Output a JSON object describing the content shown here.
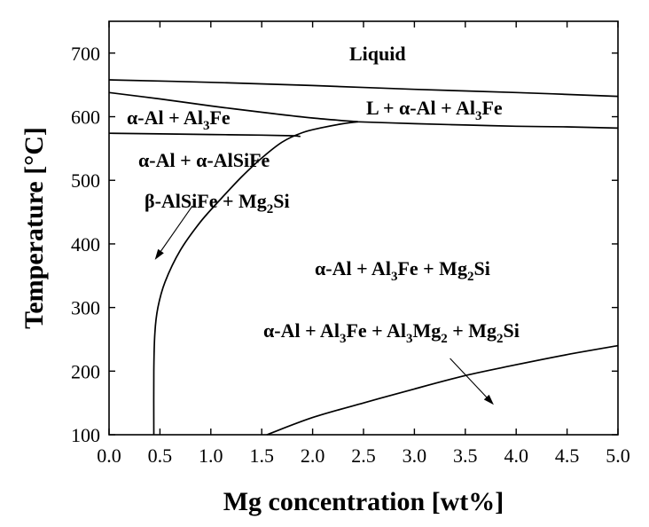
{
  "chart_data": {
    "type": "line",
    "title": "",
    "xlabel": "Mg concentration [wt%]",
    "ylabel": "Temperature [°C]",
    "xlim": [
      0.0,
      5.0
    ],
    "ylim": [
      100,
      750
    ],
    "xticks": [
      0.0,
      0.5,
      1.0,
      1.5,
      2.0,
      2.5,
      3.0,
      3.5,
      4.0,
      4.5,
      5.0
    ],
    "xtick_labels": [
      "0.0",
      "0.5",
      "1.0",
      "1.5",
      "2.0",
      "2.5",
      "3.0",
      "3.5",
      "4.0",
      "4.5",
      "5.0"
    ],
    "yticks": [
      100,
      200,
      300,
      400,
      500,
      600,
      700
    ],
    "ytick_labels": [
      "100",
      "200",
      "300",
      "400",
      "500",
      "600",
      "700"
    ],
    "grid": false,
    "series": [
      {
        "id": "liquidus",
        "x": [
          0.0,
          1.0,
          2.0,
          3.0,
          4.0,
          5.0
        ],
        "y": [
          658,
          654,
          649,
          643,
          638,
          632
        ]
      },
      {
        "id": "al-al3fe-upper",
        "x": [
          0.0,
          0.5,
          1.0,
          1.5,
          2.0,
          2.45
        ],
        "y": [
          638,
          628,
          617,
          607,
          598,
          592
        ]
      },
      {
        "id": "eutectic-line",
        "x": [
          2.45,
          3.0,
          3.5,
          4.0,
          4.5,
          5.0
        ],
        "y": [
          592,
          589,
          587,
          585,
          584,
          582
        ]
      },
      {
        "id": "al-al3fe-lower",
        "x": [
          0.0,
          0.5,
          1.0,
          1.5,
          1.8,
          1.88
        ],
        "y": [
          574,
          573,
          572,
          571,
          570,
          569
        ]
      },
      {
        "id": "mg2si-solvus",
        "x": [
          0.44,
          0.44,
          0.45,
          0.48,
          0.55,
          0.7,
          0.9,
          1.1,
          1.3,
          1.5,
          1.7,
          1.9,
          2.1,
          2.3,
          2.45
        ],
        "y": [
          100,
          200,
          260,
          300,
          340,
          390,
          435,
          471,
          505,
          535,
          560,
          575,
          583,
          589,
          592
        ]
      },
      {
        "id": "al3mg2-solvus",
        "x": [
          1.55,
          2.0,
          2.5,
          3.0,
          3.5,
          4.0,
          4.5,
          5.0
        ],
        "y": [
          100,
          127,
          150,
          172,
          193,
          210,
          226,
          240
        ]
      }
    ],
    "annotations": {
      "liquid": "Liquid",
      "l_plus": [
        "L ",
        "+ ",
        "α-Al + Al",
        "3",
        "Fe"
      ],
      "al_al3fe": [
        "α-Al + Al",
        "3",
        "Fe"
      ],
      "al_alsife": "α-Al + α-AlSiFe",
      "beta_mg2si": [
        "β-AlSiFe + Mg",
        "2",
        "Si"
      ],
      "al_al3fe_mg2si": [
        "α-Al + Al",
        "3",
        "Fe + Mg",
        "2",
        "Si"
      ],
      "al_al3fe_al3mg2_mg2si": [
        "α-Al + Al",
        "3",
        "Fe + Al",
        "3",
        "Mg",
        "2",
        " + Mg",
        "2",
        "Si"
      ]
    },
    "arrows": [
      {
        "from": [
          0.82,
          460
        ],
        "to": [
          0.45,
          375
        ]
      },
      {
        "from": [
          3.35,
          220
        ],
        "to": [
          3.78,
          147
        ]
      }
    ]
  }
}
